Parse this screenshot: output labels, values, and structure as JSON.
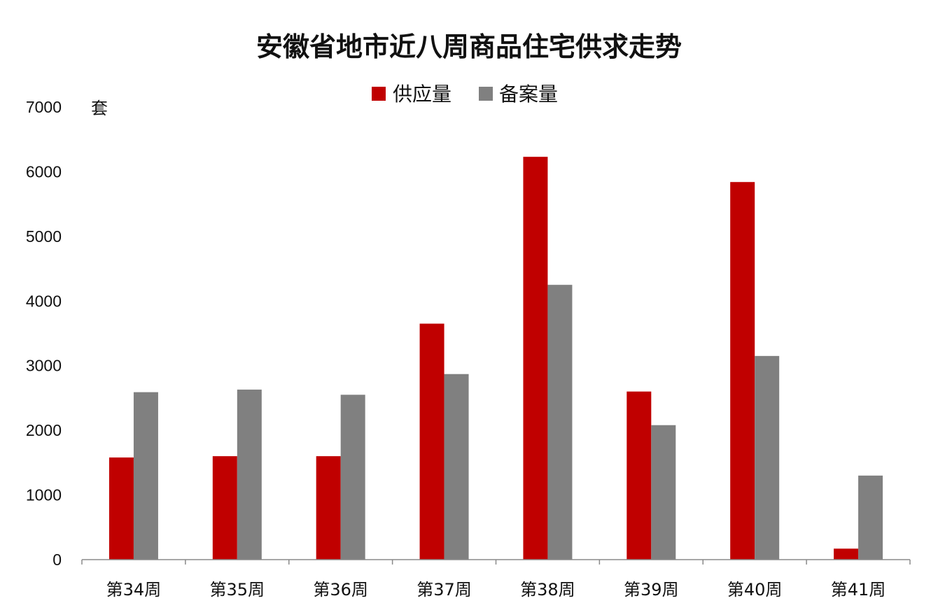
{
  "chart_data": {
    "type": "bar",
    "title": "安徽省地市近八周商品住宅供求走势",
    "unit_label": "套",
    "categories": [
      "第34周",
      "第35周",
      "第36周",
      "第37周",
      "第38周",
      "第39周",
      "第40周",
      "第41周"
    ],
    "series": [
      {
        "name": "供应量",
        "color": "#c00000",
        "values": [
          1580,
          1600,
          1600,
          3650,
          6230,
          2600,
          5840,
          170
        ]
      },
      {
        "name": "备案量",
        "color": "#808080",
        "values": [
          2590,
          2630,
          2550,
          2870,
          4250,
          2080,
          3150,
          1300
        ]
      }
    ],
    "ylim": [
      0,
      7000
    ],
    "yticks": [
      "0",
      "1000",
      "2000",
      "3000",
      "4000",
      "5000",
      "6000",
      "7000"
    ],
    "grid": false,
    "legend_position": "top-center"
  }
}
